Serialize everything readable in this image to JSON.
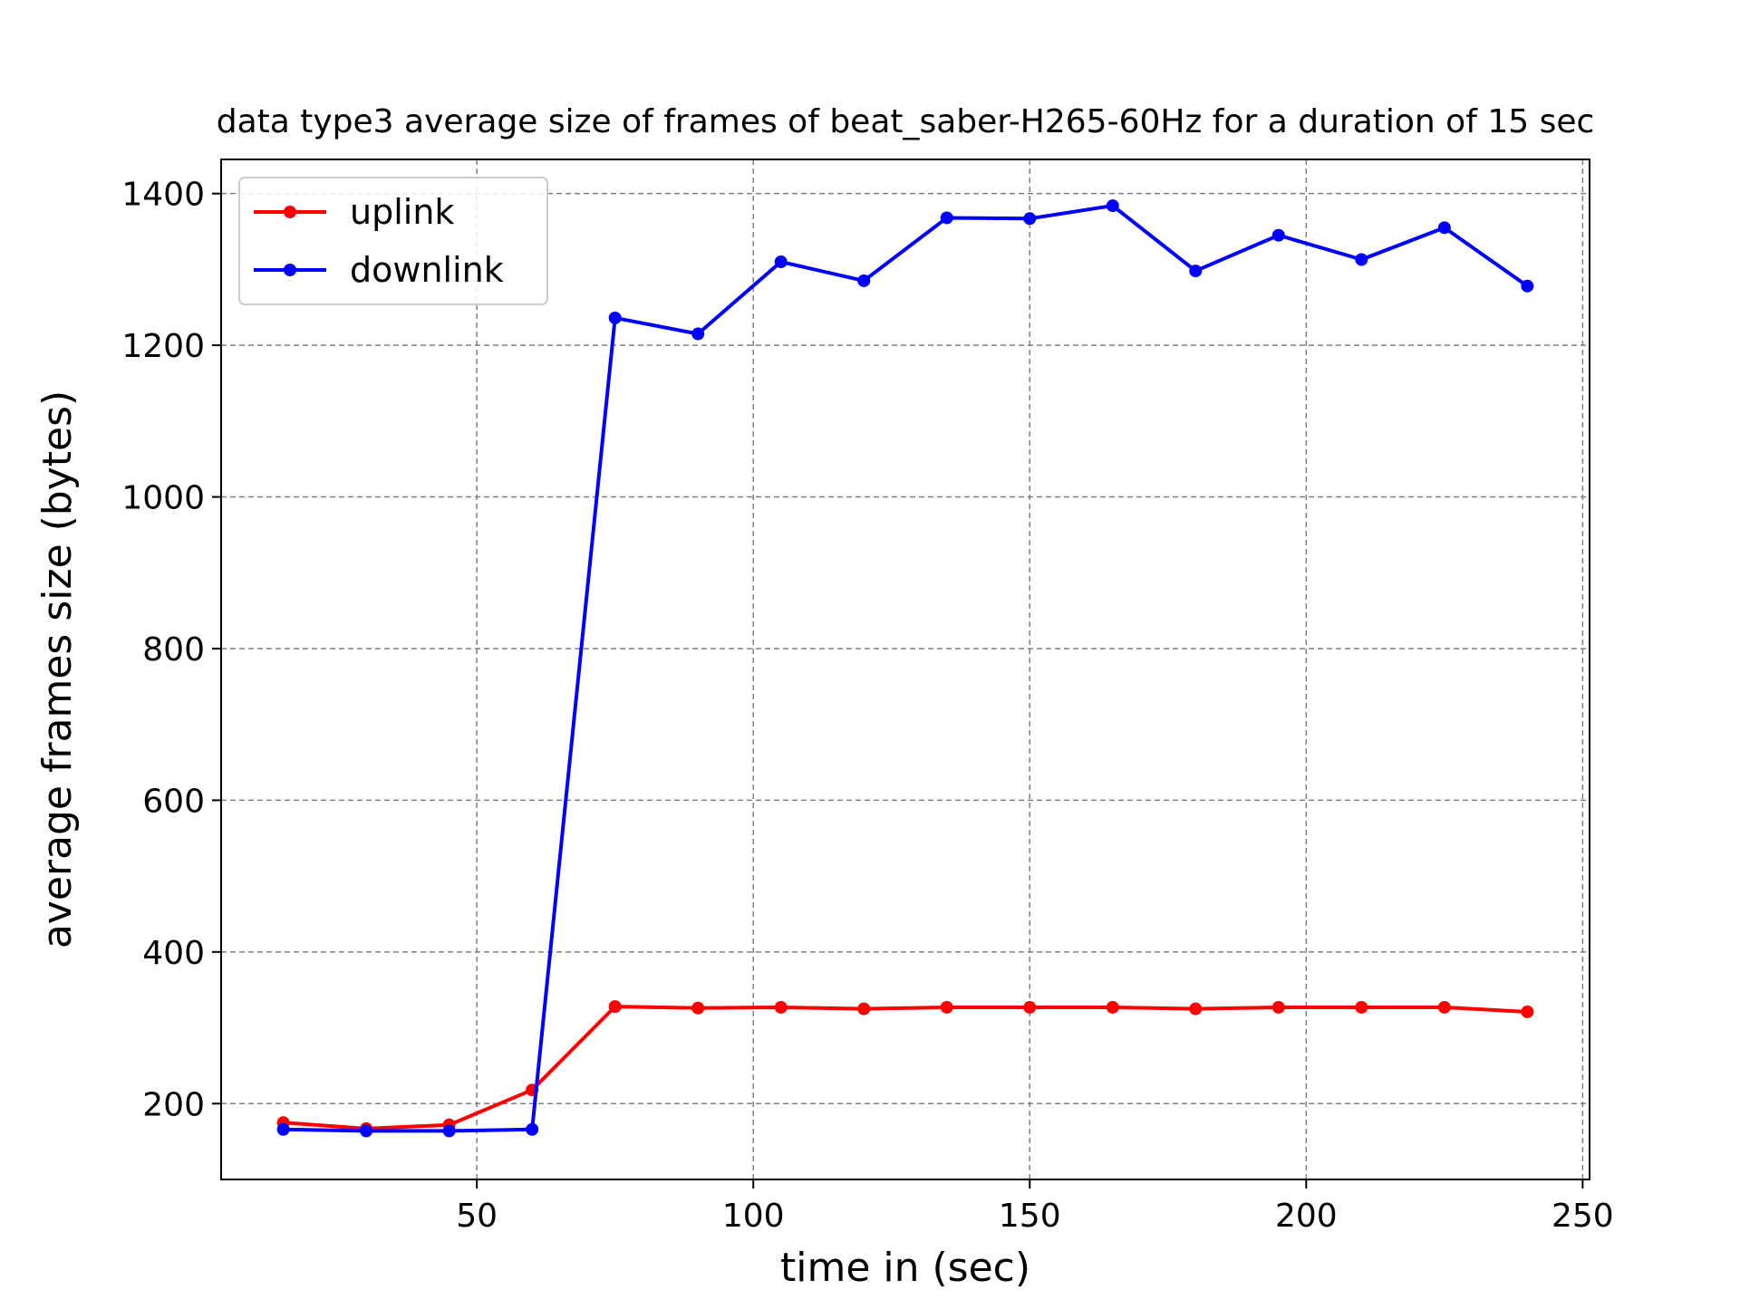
{
  "chart_data": {
    "type": "line",
    "title": "data type3 average size of frames of beat_saber-H265-60Hz for a duration of 15 sec",
    "xlabel": "time in (sec)",
    "ylabel": "average frames size (bytes)",
    "xlim": [
      3.75,
      251.25
    ],
    "ylim": [
      100,
      1445
    ],
    "xticks": [
      50,
      100,
      150,
      200,
      250
    ],
    "yticks": [
      200,
      400,
      600,
      800,
      1000,
      1200,
      1400
    ],
    "grid": true,
    "legend_position": "upper left",
    "x": [
      15,
      30,
      45,
      60,
      75,
      90,
      105,
      120,
      135,
      150,
      165,
      180,
      195,
      210,
      225,
      240
    ],
    "series": [
      {
        "name": "uplink",
        "color": "#ff0000",
        "values": [
          175,
          167,
          172,
          218,
          328,
          326,
          327,
          325,
          327,
          327,
          327,
          325,
          327,
          327,
          327,
          321
        ]
      },
      {
        "name": "downlink",
        "color": "#0000ff",
        "values": [
          166,
          164,
          164,
          166,
          1236,
          1215,
          1310,
          1285,
          1368,
          1367,
          1384,
          1298,
          1345,
          1313,
          1355,
          1278
        ]
      }
    ]
  }
}
